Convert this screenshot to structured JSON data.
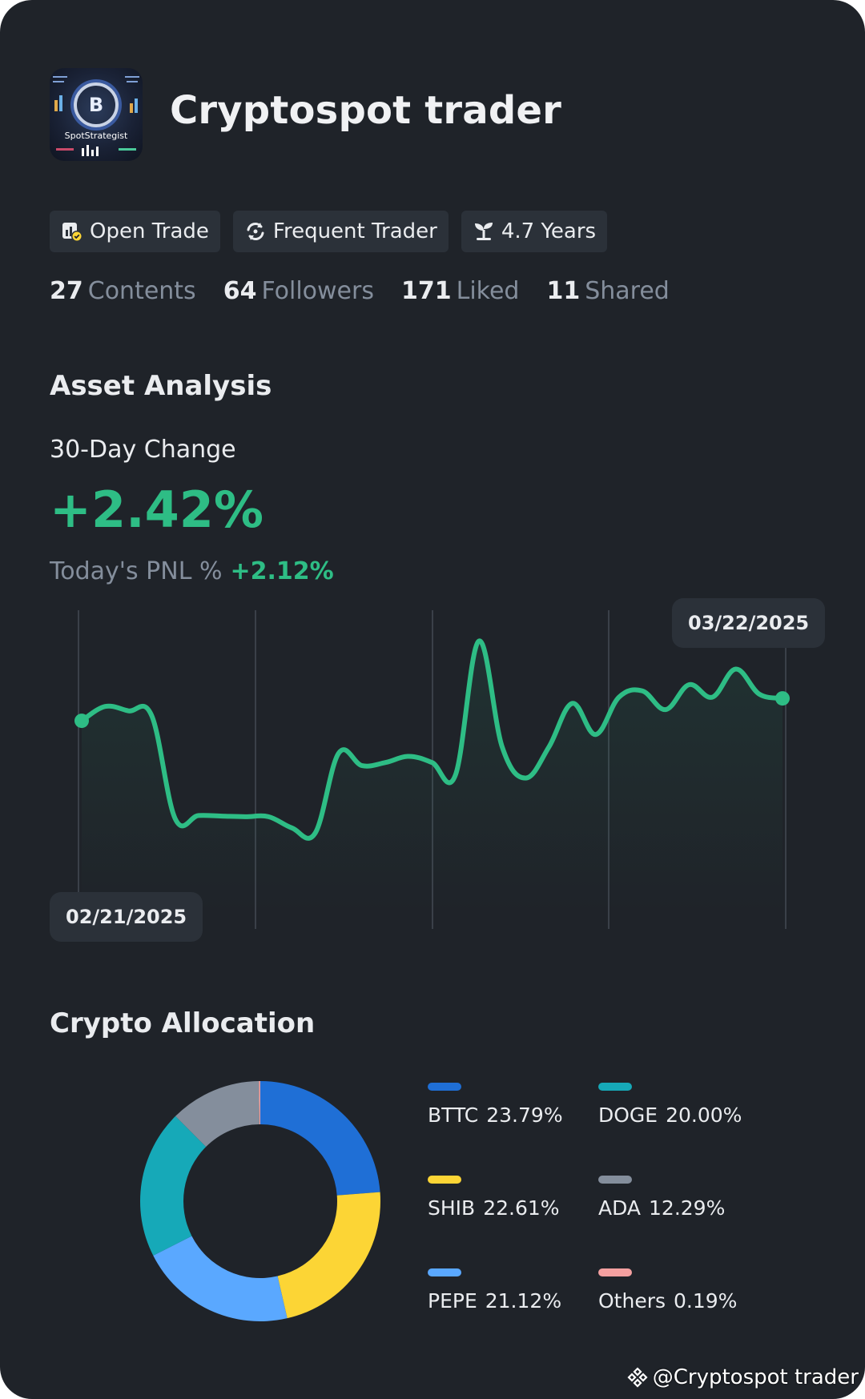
{
  "profile": {
    "avatar_caption": "SpotStrategist",
    "avatar_letter": "B",
    "name": "Cryptospot trader"
  },
  "tags": [
    {
      "label": "Open Trade",
      "icon": "open-trade-icon"
    },
    {
      "label": "Frequent Trader",
      "icon": "refresh-icon"
    },
    {
      "label": "4.7 Years",
      "icon": "sprout-icon"
    }
  ],
  "stats": [
    {
      "value": "27",
      "label": "Contents"
    },
    {
      "value": "64",
      "label": "Followers"
    },
    {
      "value": "171",
      "label": "Liked"
    },
    {
      "value": "11",
      "label": "Shared"
    }
  ],
  "analysis": {
    "title": "Asset Analysis",
    "period_label": "30-Day Change",
    "change": "+2.42%",
    "pnl_label": "Today's PNL %",
    "pnl_value": "+2.12%"
  },
  "chart_data": {
    "type": "line",
    "start_date": "02/21/2025",
    "end_date": "03/22/2025",
    "y": [
      0.62,
      0.85,
      0.78,
      0.7,
      -0.95,
      -0.9,
      -0.91,
      -0.92,
      -0.92,
      -1.1,
      -1.18,
      0.1,
      -0.1,
      -0.05,
      0.05,
      -0.05,
      -0.25,
      1.9,
      0.2,
      -0.3,
      0.2,
      0.9,
      0.4,
      1.0,
      1.1,
      0.8,
      1.2,
      1.0,
      1.45,
      1.05,
      0.98
    ],
    "line_color": "#2ebd85",
    "grid": "vertical"
  },
  "allocation": {
    "title": "Crypto Allocation",
    "items": [
      {
        "name": "BTTC",
        "pct": "23.79%",
        "value": 23.79,
        "color": "#1f6fd6"
      },
      {
        "name": "DOGE",
        "pct": "20.00%",
        "value": 20.0,
        "color": "#16a9b8"
      },
      {
        "name": "SHIB",
        "pct": "22.61%",
        "value": 22.61,
        "color": "#fcd535"
      },
      {
        "name": "ADA",
        "pct": "12.29%",
        "value": 12.29,
        "color": "#848e9c"
      },
      {
        "name": "PEPE",
        "pct": "21.12%",
        "value": 21.12,
        "color": "#5aa8ff"
      },
      {
        "name": "Others",
        "pct": "0.19%",
        "value": 0.19,
        "color": "#f4a0a0"
      }
    ],
    "donut_order": [
      "BTTC",
      "SHIB",
      "PEPE",
      "DOGE",
      "ADA",
      "Others"
    ]
  },
  "watermark": {
    "text": "@Cryptospot trader",
    "icon": "binance-logo-icon"
  }
}
